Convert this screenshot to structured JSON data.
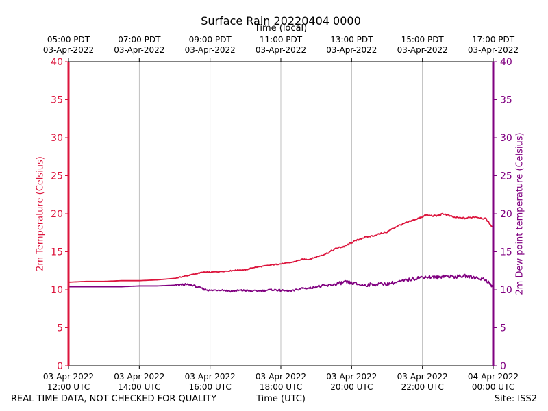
{
  "chart_data": {
    "type": "line",
    "title": "Surface Rain 20220404 0000",
    "top_axis_label": "Time (local)",
    "xlabel": "Time (UTC)",
    "ylabel_left": "2m Temperature (Celsius)",
    "ylabel_right": "2m Dew point temperature (Celsius)",
    "ylim": [
      0,
      40
    ],
    "y_ticks": [
      0,
      5,
      10,
      15,
      20,
      25,
      30,
      35,
      40
    ],
    "x_range_hours": [
      12,
      24
    ],
    "grid": "vertical",
    "bottom_ticks": [
      {
        "hour": 12,
        "line1": "03-Apr-2022",
        "line2": "12:00 UTC"
      },
      {
        "hour": 14,
        "line1": "03-Apr-2022",
        "line2": "14:00 UTC"
      },
      {
        "hour": 16,
        "line1": "03-Apr-2022",
        "line2": "16:00 UTC"
      },
      {
        "hour": 18,
        "line1": "03-Apr-2022",
        "line2": "18:00 UTC"
      },
      {
        "hour": 20,
        "line1": "03-Apr-2022",
        "line2": "20:00 UTC"
      },
      {
        "hour": 22,
        "line1": "03-Apr-2022",
        "line2": "22:00 UTC"
      },
      {
        "hour": 24,
        "line1": "04-Apr-2022",
        "line2": "00:00 UTC"
      }
    ],
    "top_ticks": [
      {
        "hour": 12,
        "line1": "05:00 PDT",
        "line2": "03-Apr-2022"
      },
      {
        "hour": 14,
        "line1": "07:00 PDT",
        "line2": "03-Apr-2022"
      },
      {
        "hour": 16,
        "line1": "09:00 PDT",
        "line2": "03-Apr-2022"
      },
      {
        "hour": 18,
        "line1": "11:00 PDT",
        "line2": "03-Apr-2022"
      },
      {
        "hour": 20,
        "line1": "13:00 PDT",
        "line2": "03-Apr-2022"
      },
      {
        "hour": 22,
        "line1": "15:00 PDT",
        "line2": "03-Apr-2022"
      },
      {
        "hour": 24,
        "line1": "17:00 PDT",
        "line2": "03-Apr-2022"
      }
    ],
    "series": [
      {
        "name": "2m Temperature",
        "axis": "left",
        "color": "#dc143c",
        "x": [
          12.0,
          12.5,
          13.0,
          13.5,
          14.0,
          14.5,
          15.0,
          15.3,
          15.5,
          15.8,
          16.0,
          16.3,
          16.6,
          16.8,
          17.0,
          17.2,
          17.5,
          17.8,
          18.0,
          18.3,
          18.6,
          18.8,
          19.0,
          19.3,
          19.6,
          19.8,
          20.0,
          20.3,
          20.6,
          21.0,
          21.3,
          21.6,
          21.9,
          22.1,
          22.4,
          22.6,
          22.9,
          23.2,
          23.5,
          23.8,
          24.0
        ],
        "values": [
          11.0,
          11.1,
          11.1,
          11.2,
          11.2,
          11.3,
          11.5,
          11.8,
          12.0,
          12.3,
          12.3,
          12.4,
          12.5,
          12.6,
          12.6,
          12.9,
          13.1,
          13.3,
          13.4,
          13.6,
          14.0,
          14.0,
          14.3,
          14.8,
          15.5,
          15.7,
          16.2,
          16.8,
          17.1,
          17.6,
          18.4,
          18.9,
          19.4,
          19.8,
          19.7,
          20.0,
          19.5,
          19.4,
          19.6,
          19.3,
          18.1
        ]
      },
      {
        "name": "2m Dew point temperature",
        "axis": "right",
        "color": "#800080",
        "x": [
          12.0,
          12.5,
          13.0,
          13.5,
          14.0,
          14.5,
          15.0,
          15.3,
          15.5,
          15.8,
          16.0,
          16.3,
          16.6,
          16.8,
          17.0,
          17.2,
          17.5,
          17.8,
          18.0,
          18.3,
          18.6,
          18.8,
          19.0,
          19.3,
          19.6,
          19.8,
          20.0,
          20.3,
          20.6,
          21.0,
          21.3,
          21.6,
          21.9,
          22.1,
          22.4,
          22.6,
          22.9,
          23.2,
          23.5,
          23.8,
          24.0
        ],
        "values": [
          10.4,
          10.4,
          10.4,
          10.4,
          10.5,
          10.5,
          10.6,
          10.7,
          10.6,
          10.1,
          9.9,
          10.0,
          9.8,
          9.9,
          9.9,
          9.8,
          9.9,
          10.0,
          9.9,
          9.8,
          10.2,
          10.2,
          10.4,
          10.5,
          10.8,
          11.0,
          10.9,
          10.6,
          10.7,
          10.8,
          11.0,
          11.3,
          11.6,
          11.7,
          11.6,
          11.8,
          11.7,
          11.8,
          11.6,
          11.3,
          10.3
        ]
      }
    ]
  },
  "footer": {
    "disclaimer": "REAL TIME DATA, NOT CHECKED FOR QUALITY",
    "site": "Site: ISS2"
  }
}
